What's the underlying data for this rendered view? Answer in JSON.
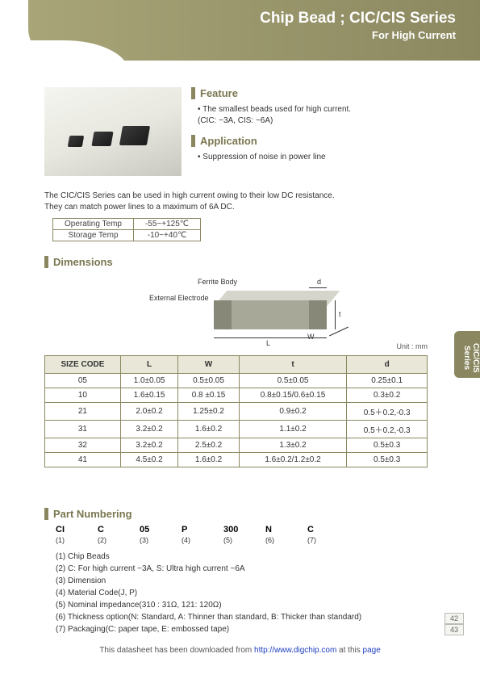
{
  "header": {
    "title": "Chip Bead ; CIC/CIS Series",
    "subtitle": "For High Current"
  },
  "feature": {
    "heading": "Feature",
    "line1": "• The smallest beads used for high current.",
    "line2": "  (CIC: ~3A,  CIS: ~6A)"
  },
  "application": {
    "heading": "Application",
    "text": "• Suppression of noise in power line"
  },
  "intro": {
    "line1": "The CIC/CIS Series can be used in high current owing to their low DC resistance.",
    "line2": "They can match power lines to a maximum of 6A DC."
  },
  "temp_table": {
    "rows": [
      [
        "Operating Temp",
        "-55~+125℃"
      ],
      [
        "Storage Temp",
        "-10~+40℃"
      ]
    ]
  },
  "dimensions": {
    "heading": "Dimensions",
    "ferrite_label": "Ferrite Body",
    "electrode_label": "External Electrode",
    "unit": "Unit : mm",
    "L": "L",
    "W": "W",
    "t": "t",
    "d": "d",
    "columns": [
      "SIZE CODE",
      "L",
      "W",
      "t",
      "d"
    ],
    "rows": [
      [
        "05",
        "1.0±0.05",
        "0.5±0.05",
        "0.5±0.05",
        "0.25±0.1"
      ],
      [
        "10",
        "1.6±0.15",
        "0.8 ±0.15",
        "0.8±0.15/0.6±0.15",
        "0.3±0.2"
      ],
      [
        "21",
        "2.0±0.2",
        "1.25±0.2",
        "0.9±0.2",
        "0.5＋0.2,-0.3"
      ],
      [
        "31",
        "3.2±0.2",
        "1.6±0.2",
        "1.1±0.2",
        "0.5＋0.2,-0.3"
      ],
      [
        "32",
        "3.2±0.2",
        "2.5±0.2",
        "1.3±0.2",
        "0.5±0.3"
      ],
      [
        "41",
        "4.5±0.2",
        "1.6±0.2",
        "1.6±0.2/1.2±0.2",
        "0.5±0.3"
      ]
    ]
  },
  "part_numbering": {
    "heading": "Part Numbering",
    "codes": [
      "CI",
      "C",
      "05",
      "P",
      "300",
      "N",
      "C"
    ],
    "indices": [
      "(1)",
      "(2)",
      "(3)",
      "(4)",
      "(5)",
      "(6)",
      "(7)"
    ],
    "desc": [
      "(1) Chip Beads",
      "(2) C: For high current ~3A,  S: Ultra high current ~6A",
      "(3) Dimension",
      "(4) Material Code(J, P)",
      "(5) Nominal impedance(310 : 31Ω, 121: 120Ω)",
      "(6) Thickness option(N: Standard, A: Thinner than standard, B: Thicker than standard)",
      "(7) Packaging(C: paper tape, E: embossed tape)"
    ]
  },
  "side_tab": "CIC/CIS Series",
  "pages": {
    "p1": "42",
    "p2": "43"
  },
  "footer": {
    "prefix": "This datasheet has been downloaded from ",
    "link1": "http://www.digchip.com",
    "mid": " at this ",
    "link2": "page"
  }
}
